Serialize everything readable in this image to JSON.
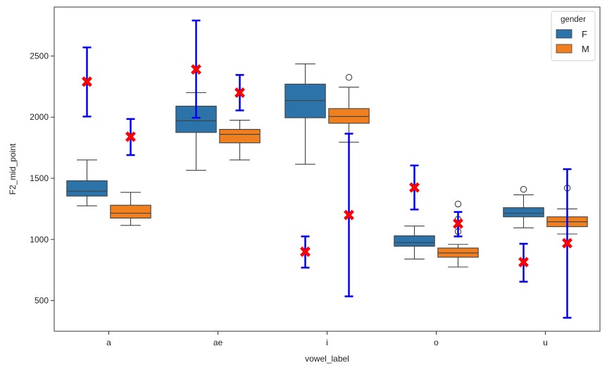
{
  "chart_data": {
    "type": "box",
    "xlabel": "vowel_label",
    "ylabel": "F2_mid_point",
    "categories": [
      "a",
      "ae",
      "i",
      "o",
      "u"
    ],
    "yticks": [
      500,
      1000,
      1500,
      2000,
      2500
    ],
    "ylim": [
      250,
      2900
    ],
    "grid": false,
    "legend": {
      "title": "gender",
      "placement": "top-right",
      "entries": [
        {
          "label": "F",
          "color": "#2c73aa"
        },
        {
          "label": "M",
          "color": "#f07f20"
        }
      ]
    },
    "colors": {
      "F": "#2c73aa",
      "M": "#f07f20",
      "errorbar": "#0000ee",
      "mean_marker": "#ff0000",
      "whisker": "#404040"
    },
    "boxes": [
      {
        "category": "a",
        "group": "F",
        "whislo": 1275,
        "q1": 1355,
        "med": 1395,
        "q3": 1480,
        "whishi": 1650,
        "fliers": []
      },
      {
        "category": "a",
        "group": "M",
        "whislo": 1115,
        "q1": 1175,
        "med": 1215,
        "q3": 1280,
        "whishi": 1385,
        "fliers": []
      },
      {
        "category": "ae",
        "group": "F",
        "whislo": 1565,
        "q1": 1875,
        "med": 1970,
        "q3": 2090,
        "whishi": 2200,
        "fliers": []
      },
      {
        "category": "ae",
        "group": "M",
        "whislo": 1650,
        "q1": 1790,
        "med": 1860,
        "q3": 1900,
        "whishi": 1975,
        "fliers": []
      },
      {
        "category": "i",
        "group": "F",
        "whislo": 1615,
        "q1": 1995,
        "med": 2135,
        "q3": 2270,
        "whishi": 2435,
        "fliers": []
      },
      {
        "category": "i",
        "group": "M",
        "whislo": 1795,
        "q1": 1950,
        "med": 2005,
        "q3": 2070,
        "whishi": 2245,
        "fliers": [
          2325
        ]
      },
      {
        "category": "o",
        "group": "F",
        "whislo": 840,
        "q1": 945,
        "med": 975,
        "q3": 1030,
        "whishi": 1110,
        "fliers": []
      },
      {
        "category": "o",
        "group": "M",
        "whislo": 775,
        "q1": 855,
        "med": 890,
        "q3": 930,
        "whishi": 960,
        "fliers": [
          1290,
          1165,
          1065
        ]
      },
      {
        "category": "u",
        "group": "F",
        "whislo": 1095,
        "q1": 1185,
        "med": 1215,
        "q3": 1260,
        "whishi": 1365,
        "fliers": [
          1410
        ]
      },
      {
        "category": "u",
        "group": "M",
        "whislo": 1045,
        "q1": 1105,
        "med": 1145,
        "q3": 1185,
        "whishi": 1250,
        "fliers": [
          1420
        ]
      }
    ],
    "mean_errorbars": [
      {
        "category": "a",
        "group": "F",
        "mean": 2290,
        "low": 2005,
        "high": 2570
      },
      {
        "category": "a",
        "group": "M",
        "mean": 1840,
        "low": 1690,
        "high": 1985
      },
      {
        "category": "ae",
        "group": "F",
        "mean": 2390,
        "low": 1995,
        "high": 2790
      },
      {
        "category": "ae",
        "group": "M",
        "mean": 2200,
        "low": 2055,
        "high": 2345
      },
      {
        "category": "i",
        "group": "F",
        "mean": 900,
        "low": 770,
        "high": 1025
      },
      {
        "category": "i",
        "group": "M",
        "mean": 1200,
        "low": 535,
        "high": 1865
      },
      {
        "category": "o",
        "group": "F",
        "mean": 1425,
        "low": 1245,
        "high": 1605
      },
      {
        "category": "o",
        "group": "M",
        "mean": 1130,
        "low": 1025,
        "high": 1225
      },
      {
        "category": "u",
        "group": "F",
        "mean": 815,
        "low": 655,
        "high": 965
      },
      {
        "category": "u",
        "group": "M",
        "mean": 970,
        "low": 360,
        "high": 1575
      }
    ]
  }
}
